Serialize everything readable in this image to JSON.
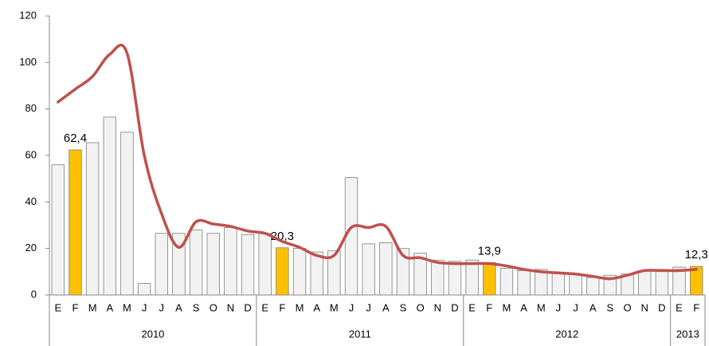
{
  "chart_data": {
    "type": "bar-line",
    "categories": [
      "E",
      "F",
      "M",
      "A",
      "M",
      "J",
      "J",
      "A",
      "S",
      "O",
      "N",
      "D",
      "E",
      "F",
      "M",
      "A",
      "M",
      "J",
      "J",
      "A",
      "S",
      "O",
      "N",
      "D",
      "E",
      "F",
      "M",
      "A",
      "M",
      "J",
      "J",
      "A",
      "S",
      "O",
      "N",
      "D",
      "E",
      "F"
    ],
    "groups": [
      {
        "name": "2010",
        "months": 12
      },
      {
        "name": "2011",
        "months": 12
      },
      {
        "name": "2012",
        "months": 12
      },
      {
        "name": "2013",
        "months": 2
      }
    ],
    "series": [
      {
        "type": "bar",
        "color": "#f2f2f2",
        "highlight_color": "#ffc000",
        "highlight": [
          false,
          true,
          false,
          false,
          false,
          false,
          false,
          false,
          false,
          false,
          false,
          false,
          false,
          true,
          false,
          false,
          false,
          false,
          false,
          false,
          false,
          false,
          false,
          false,
          false,
          true,
          false,
          false,
          false,
          false,
          false,
          false,
          false,
          false,
          false,
          false,
          false,
          true
        ],
        "values": [
          56,
          62.4,
          65.5,
          76.5,
          70,
          5,
          26.5,
          26.5,
          28,
          26.5,
          29,
          26,
          26.5,
          20.3,
          20,
          18.5,
          19,
          50.5,
          22,
          22.5,
          20,
          18,
          15,
          14.5,
          15,
          13.9,
          11.5,
          10.5,
          11,
          9.5,
          9,
          7.5,
          8.5,
          9,
          10.5,
          11,
          12,
          12.3
        ],
        "value_labels": [
          null,
          "62,4",
          null,
          null,
          null,
          null,
          null,
          null,
          null,
          null,
          null,
          null,
          null,
          "20,3",
          null,
          null,
          null,
          null,
          null,
          null,
          null,
          null,
          null,
          null,
          null,
          "13,9",
          null,
          null,
          null,
          null,
          null,
          null,
          null,
          null,
          null,
          null,
          null,
          "12,3"
        ]
      },
      {
        "type": "line",
        "color": "#c0504d",
        "values": [
          83,
          88.5,
          94,
          103.5,
          104,
          60,
          35,
          20.5,
          31.5,
          30.5,
          29.5,
          27.5,
          26.5,
          23,
          20.5,
          17,
          17,
          29,
          29,
          29.5,
          17,
          16,
          14,
          13.5,
          13.5,
          13.5,
          12.5,
          11,
          10,
          9.5,
          9,
          8,
          7,
          8.5,
          10.5,
          10.5,
          10.5,
          11
        ]
      }
    ],
    "ylim": [
      0,
      120
    ],
    "yticks": [
      0,
      20,
      40,
      60,
      80,
      100,
      120
    ],
    "grid": false
  }
}
